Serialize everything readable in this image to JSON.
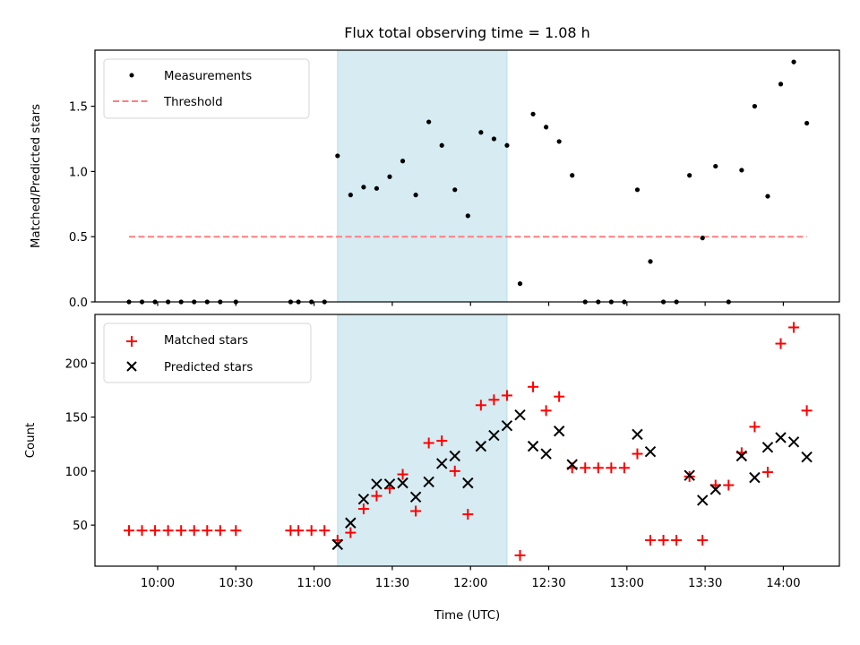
{
  "chart_data": [
    {
      "type": "scatter",
      "panel": "top",
      "title": "Flux total observing time = 1.08 h",
      "xlabel": "",
      "ylabel": "Matched/Predicted stars",
      "xlim": [
        "09:36",
        "14:21"
      ],
      "ylim": [
        0,
        1.93
      ],
      "yticks": [
        0.0,
        0.5,
        1.0,
        1.5
      ],
      "ytick_labels": [
        "0.0",
        "0.5",
        "1.0",
        "1.5"
      ],
      "xticks": [
        "10:00",
        "10:30",
        "11:00",
        "11:30",
        "12:00",
        "12:30",
        "13:00",
        "13:30",
        "14:00"
      ],
      "grid": false,
      "legend_position": "top-left",
      "shaded_region": {
        "start": "11:09",
        "end": "12:14",
        "color": "#add8e6"
      },
      "series": [
        {
          "name": "Measurements",
          "marker": "dot",
          "color": "#000000",
          "x": [
            "09:49",
            "09:54",
            "09:59",
            "10:04",
            "10:09",
            "10:14",
            "10:19",
            "10:24",
            "10:30",
            "10:51",
            "10:54",
            "10:59",
            "11:04",
            "11:09",
            "11:14",
            "11:19",
            "11:24",
            "11:29",
            "11:34",
            "11:39",
            "11:44",
            "11:49",
            "11:54",
            "11:59",
            "12:04",
            "12:09",
            "12:14",
            "12:19",
            "12:24",
            "12:29",
            "12:34",
            "12:39",
            "12:44",
            "12:49",
            "12:54",
            "12:59",
            "13:04",
            "13:09",
            "13:14",
            "13:19",
            "13:24",
            "13:29",
            "13:34",
            "13:39",
            "13:44",
            "13:49",
            "13:54",
            "13:59",
            "14:04",
            "14:09"
          ],
          "values": [
            0,
            0,
            0,
            0,
            0,
            0,
            0,
            0,
            0,
            0,
            0,
            0,
            0,
            1.12,
            0.82,
            0.88,
            0.87,
            0.96,
            1.08,
            0.82,
            1.38,
            1.2,
            0.86,
            0.66,
            1.3,
            1.25,
            1.2,
            0.14,
            1.44,
            1.34,
            1.23,
            0.97,
            0,
            0,
            0,
            0,
            0.86,
            0.31,
            0,
            0,
            0.97,
            0.49,
            1.04,
            0,
            1.01,
            1.5,
            0.81,
            1.67,
            1.84,
            1.37
          ]
        },
        {
          "name": "Threshold",
          "marker": "dashed-line",
          "color": "#ff7f7f",
          "x": [
            "09:49",
            "14:09"
          ],
          "values": [
            0.5,
            0.5
          ]
        }
      ]
    },
    {
      "type": "scatter",
      "panel": "bottom",
      "title": "",
      "xlabel": "Time (UTC)",
      "ylabel": "Count",
      "xlim": [
        "09:36",
        "14:21"
      ],
      "ylim": [
        12,
        245
      ],
      "yticks": [
        50,
        100,
        150,
        200
      ],
      "ytick_labels": [
        "50",
        "100",
        "150",
        "200"
      ],
      "xticks": [
        "10:00",
        "10:30",
        "11:00",
        "11:30",
        "12:00",
        "12:30",
        "13:00",
        "13:30",
        "14:00"
      ],
      "grid": false,
      "legend_position": "top-left",
      "shaded_region": {
        "start": "11:09",
        "end": "12:14",
        "color": "#add8e6"
      },
      "series": [
        {
          "name": "Matched stars",
          "marker": "plus",
          "color": "#ff0000",
          "x": [
            "09:49",
            "09:54",
            "09:59",
            "10:04",
            "10:09",
            "10:14",
            "10:19",
            "10:24",
            "10:30",
            "10:51",
            "10:54",
            "10:59",
            "11:04",
            "11:09",
            "11:14",
            "11:19",
            "11:24",
            "11:29",
            "11:34",
            "11:39",
            "11:44",
            "11:49",
            "11:54",
            "11:59",
            "12:04",
            "12:09",
            "12:14",
            "12:19",
            "12:24",
            "12:29",
            "12:34",
            "12:39",
            "12:44",
            "12:49",
            "12:54",
            "12:59",
            "13:04",
            "13:09",
            "13:14",
            "13:19",
            "13:24",
            "13:29",
            "13:34",
            "13:39",
            "13:44",
            "13:49",
            "13:54",
            "13:59",
            "14:04",
            "14:09"
          ],
          "values": [
            45,
            45,
            45,
            45,
            45,
            45,
            45,
            45,
            45,
            45,
            45,
            45,
            45,
            36,
            43,
            65,
            77,
            84,
            97,
            63,
            126,
            128,
            100,
            60,
            161,
            166,
            170,
            22,
            178,
            156,
            169,
            103,
            103,
            103,
            103,
            103,
            116,
            36,
            36,
            36,
            95,
            36,
            87,
            87,
            117,
            141,
            99,
            218,
            233,
            156
          ]
        },
        {
          "name": "Predicted stars",
          "marker": "x",
          "color": "#000000",
          "x": [
            "11:09",
            "11:14",
            "11:19",
            "11:24",
            "11:29",
            "11:34",
            "11:39",
            "11:44",
            "11:49",
            "11:54",
            "11:59",
            "12:04",
            "12:09",
            "12:14",
            "12:19",
            "12:24",
            "12:29",
            "12:34",
            "12:39",
            "13:04",
            "13:09",
            "13:24",
            "13:29",
            "13:34",
            "13:44",
            "13:49",
            "13:54",
            "13:59",
            "14:04",
            "14:09"
          ],
          "values": [
            32,
            52,
            74,
            88,
            88,
            89,
            76,
            90,
            107,
            114,
            89,
            123,
            133,
            142,
            152,
            123,
            116,
            137,
            106,
            134,
            118,
            96,
            73,
            83,
            114,
            94,
            122,
            131,
            127,
            113
          ]
        }
      ]
    }
  ]
}
